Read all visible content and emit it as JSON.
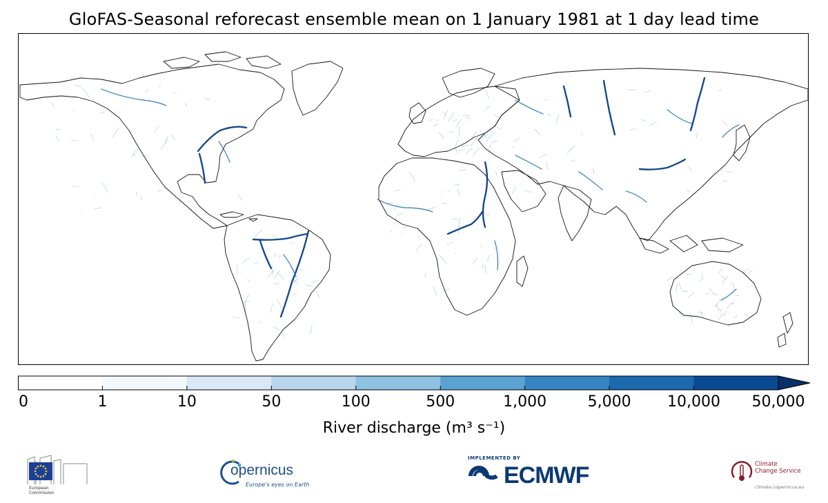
{
  "title": "GloFAS-Seasonal reforecast ensemble mean on 1 January 1981 at 1 day lead time",
  "colorbar": {
    "label": "River discharge (m³ s⁻¹)",
    "ticks": [
      "0",
      "1",
      "10",
      "50",
      "100",
      "500",
      "1,000",
      "5,000",
      "10,000",
      "50,000"
    ],
    "colors": [
      "#ffffff",
      "#f3f8fd",
      "#d9e8f6",
      "#bad6ec",
      "#8fc1e0",
      "#5aa2d2",
      "#3685c2",
      "#1c69ae",
      "#0a4a93"
    ],
    "extend_color": "#08306b"
  },
  "map": {
    "land_color": "#ffffff",
    "coast_color": "#111111",
    "river_color": "#1f6fb4",
    "river_color_major": "#0a3f86"
  },
  "logos": {
    "european_commission": {
      "caption": "European\nCommission",
      "flag_color": "#1b3f9b",
      "star_color": "#ffd617"
    },
    "copernicus": {
      "name": "opernicus",
      "tagline": "Europe's eyes on Earth"
    },
    "ecmwf": {
      "implemented_by": "IMPLEMENTED BY",
      "name": "ECMWF"
    },
    "climate_change_service": {
      "name": "Climate\nChange Service",
      "url": "climate.copernicus.eu"
    }
  }
}
